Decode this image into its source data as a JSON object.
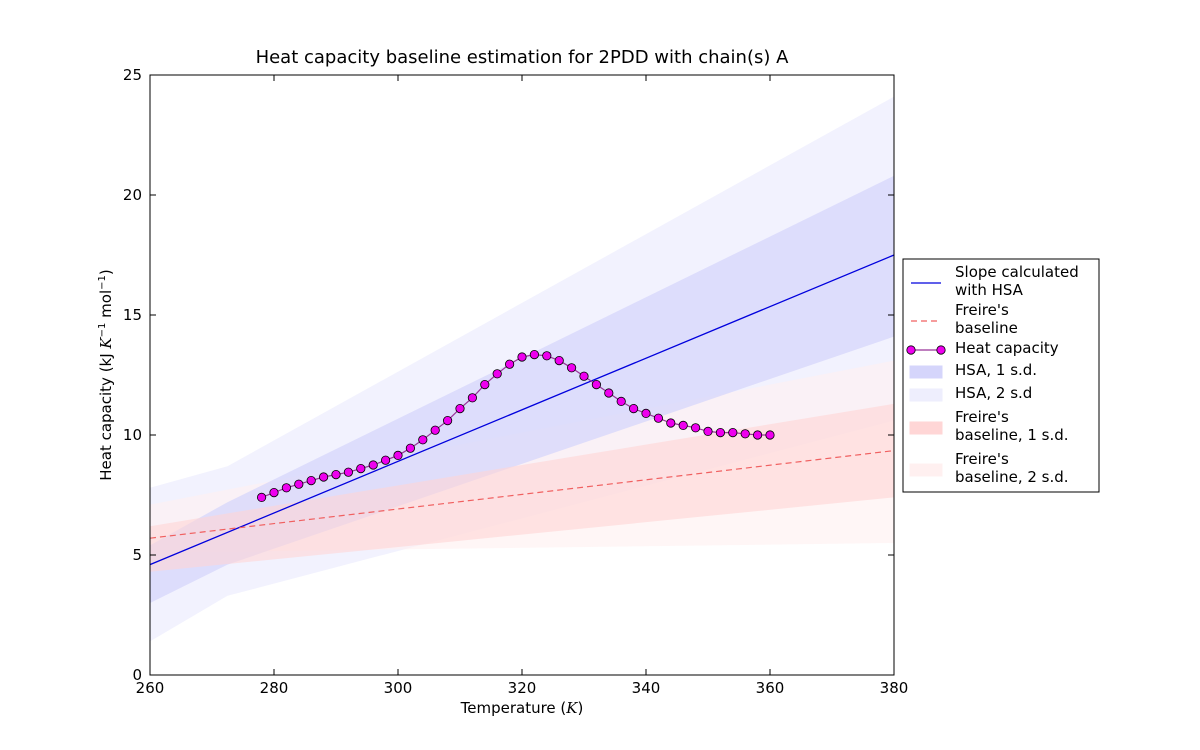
{
  "chart_data": {
    "type": "line",
    "title": "Heat capacity baseline estimation for 2PDD with chain(s) A",
    "xlabel": {
      "prefix": "Temperature (",
      "italic": "K",
      "suffix": ")"
    },
    "ylabel": {
      "prefix": "Heat capacity (kJ ",
      "unit1": "K",
      "exp1": "−1",
      "mid": " mol",
      "exp2": "−1",
      "suffix": ")"
    },
    "xlim": [
      260,
      380
    ],
    "ylim": [
      0,
      25
    ],
    "xticks": [
      260,
      280,
      300,
      320,
      340,
      360,
      380
    ],
    "yticks": [
      0,
      5,
      10,
      15,
      20,
      25
    ],
    "colors": {
      "hsa_line": "#0000dd",
      "freire_line": "#f06060",
      "heat_marker": "#ee00ee",
      "heat_line": "#993399",
      "hsa_1sd": "#d5d5fb",
      "hsa_2sd": "#eeeefd",
      "freire_1sd": "#ffd6d6",
      "freire_2sd": "#fff0f0"
    },
    "bands": [
      {
        "name": "hsa_2sd",
        "x": [
          260,
          272.5,
          380
        ],
        "upper": [
          7.8,
          8.7,
          24.1
        ],
        "lower": [
          1.4,
          3.3,
          10.6
        ]
      },
      {
        "name": "freire_2sd",
        "x": [
          260,
          380
        ],
        "upper": [
          7.1,
          13.1
        ],
        "lower": [
          5.1,
          5.5
        ]
      },
      {
        "name": "hsa_1sd",
        "x": [
          260,
          272.5,
          380
        ],
        "upper": [
          5.4,
          7.2,
          20.8
        ],
        "lower": [
          3.0,
          4.6,
          14.1
        ]
      },
      {
        "name": "freire_1sd",
        "x": [
          260,
          380
        ],
        "upper": [
          6.2,
          11.3
        ],
        "lower": [
          4.3,
          7.4
        ]
      }
    ],
    "series": [
      {
        "name": "Slope calculated with HSA",
        "style": "solid",
        "x": [
          260,
          380
        ],
        "y": [
          4.6,
          17.5
        ]
      },
      {
        "name": "Freire's baseline",
        "style": "dashed",
        "x": [
          260,
          380
        ],
        "y": [
          5.7,
          9.35
        ]
      },
      {
        "name": "Heat capacity",
        "style": "marker-line",
        "x": [
          278,
          280,
          282,
          284,
          286,
          288,
          290,
          292,
          294,
          296,
          298,
          300,
          302,
          304,
          306,
          308,
          310,
          312,
          314,
          316,
          318,
          320,
          322,
          324,
          326,
          328,
          330,
          332,
          334,
          336,
          338,
          340,
          342,
          344,
          346,
          348,
          350,
          352,
          354,
          356,
          358,
          360
        ],
        "y": [
          7.4,
          7.6,
          7.8,
          7.95,
          8.1,
          8.25,
          8.35,
          8.45,
          8.6,
          8.75,
          8.95,
          9.15,
          9.45,
          9.8,
          10.2,
          10.6,
          11.1,
          11.55,
          12.1,
          12.55,
          12.95,
          13.25,
          13.35,
          13.3,
          13.1,
          12.8,
          12.45,
          12.1,
          11.75,
          11.4,
          11.1,
          10.9,
          10.7,
          10.5,
          10.4,
          10.3,
          10.15,
          10.1,
          10.1,
          10.05,
          10.0,
          10.0
        ]
      }
    ],
    "legend": {
      "position": "right",
      "entries": [
        {
          "key": "hsa_line",
          "lines": [
            "Slope calculated",
            "with HSA"
          ]
        },
        {
          "key": "freire_line",
          "lines": [
            "Freire's",
            "baseline"
          ]
        },
        {
          "key": "heat",
          "lines": [
            "Heat capacity"
          ]
        },
        {
          "key": "hsa_1sd",
          "lines": [
            "HSA, 1 s.d."
          ]
        },
        {
          "key": "hsa_2sd",
          "lines": [
            "HSA, 2 s.d"
          ]
        },
        {
          "key": "freire_1sd",
          "lines": [
            "Freire's",
            "baseline, 1 s.d."
          ]
        },
        {
          "key": "freire_2sd",
          "lines": [
            "Freire's",
            "baseline, 2 s.d."
          ]
        }
      ]
    }
  }
}
